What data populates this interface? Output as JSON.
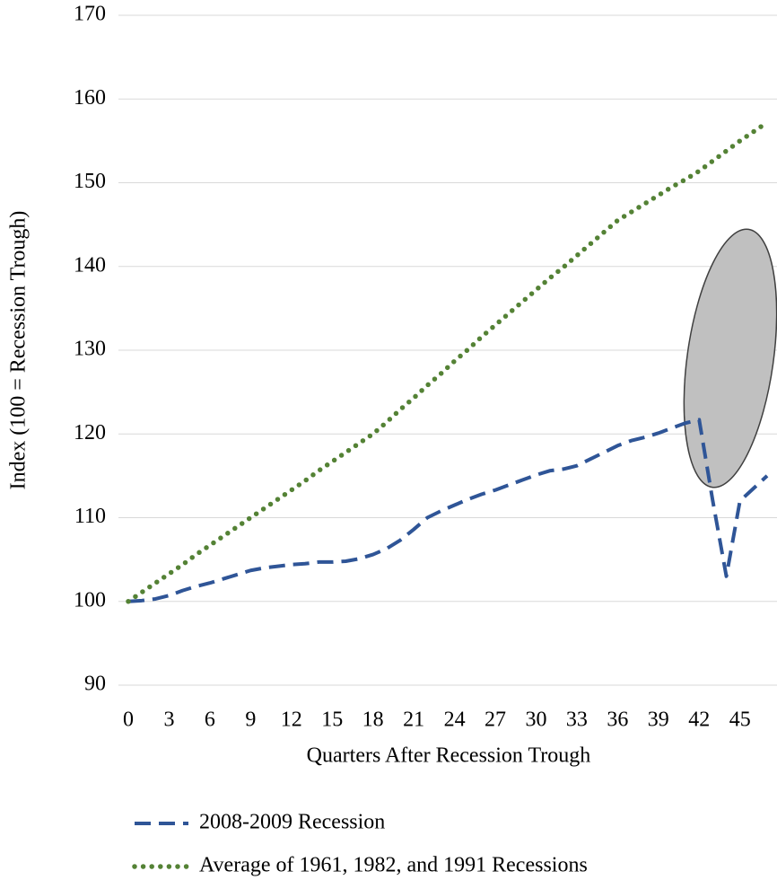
{
  "chart_data": {
    "type": "line",
    "x_label": "Quarters After Recession Trough",
    "y_label": "Index (100 =  Recession Trough)",
    "x": [
      0,
      1,
      2,
      3,
      4,
      5,
      6,
      7,
      8,
      9,
      10,
      11,
      12,
      13,
      14,
      15,
      16,
      17,
      18,
      19,
      20,
      21,
      22,
      23,
      24,
      25,
      26,
      27,
      28,
      29,
      30,
      31,
      32,
      33,
      34,
      35,
      36,
      37,
      38,
      39,
      40,
      41,
      42,
      43,
      44,
      45,
      46,
      47
    ],
    "xlim": [
      0,
      47
    ],
    "xticks": [
      0,
      3,
      6,
      9,
      12,
      15,
      18,
      21,
      24,
      27,
      30,
      33,
      36,
      39,
      42,
      45
    ],
    "ylim": [
      90,
      170
    ],
    "yticks": [
      90,
      100,
      110,
      120,
      130,
      140,
      150,
      160,
      170
    ],
    "grid": true,
    "legend": "bottom",
    "series": [
      {
        "name": "2008-2009 Recession",
        "color": "#2f5597",
        "style": "dashed",
        "values": [
          100,
          100.1,
          100.3,
          100.7,
          101.3,
          101.8,
          102.2,
          102.7,
          103.2,
          103.7,
          104,
          104.2,
          104.4,
          104.5,
          104.7,
          104.7,
          104.8,
          105.1,
          105.6,
          106.3,
          107.3,
          108.6,
          110,
          110.8,
          111.5,
          112.2,
          112.8,
          113.3,
          113.9,
          114.5,
          115.1,
          115.6,
          115.8,
          116.2,
          117,
          117.8,
          118.6,
          119.2,
          119.6,
          120.1,
          120.7,
          121.3,
          121.7,
          112,
          103,
          112,
          113.5,
          115
        ]
      },
      {
        "name": "Average of 1961, 1982, and 1991 Recessions",
        "color": "#548235",
        "style": "dotted",
        "values": [
          100,
          101.1,
          102.2,
          103.3,
          104.4,
          105.6,
          106.7,
          107.8,
          108.9,
          110,
          111.1,
          112.2,
          113.3,
          114.4,
          115.6,
          116.7,
          117.8,
          118.9,
          120,
          121.4,
          122.9,
          124.3,
          125.8,
          127.2,
          128.7,
          130.1,
          131.6,
          133,
          134.4,
          135.8,
          137.2,
          138.6,
          139.9,
          141.3,
          142.7,
          144.1,
          145.5,
          146.5,
          147.5,
          148.5,
          149.5,
          150.4,
          151.4,
          152.6,
          153.8,
          155,
          156.1,
          157.2
        ]
      }
    ]
  }
}
